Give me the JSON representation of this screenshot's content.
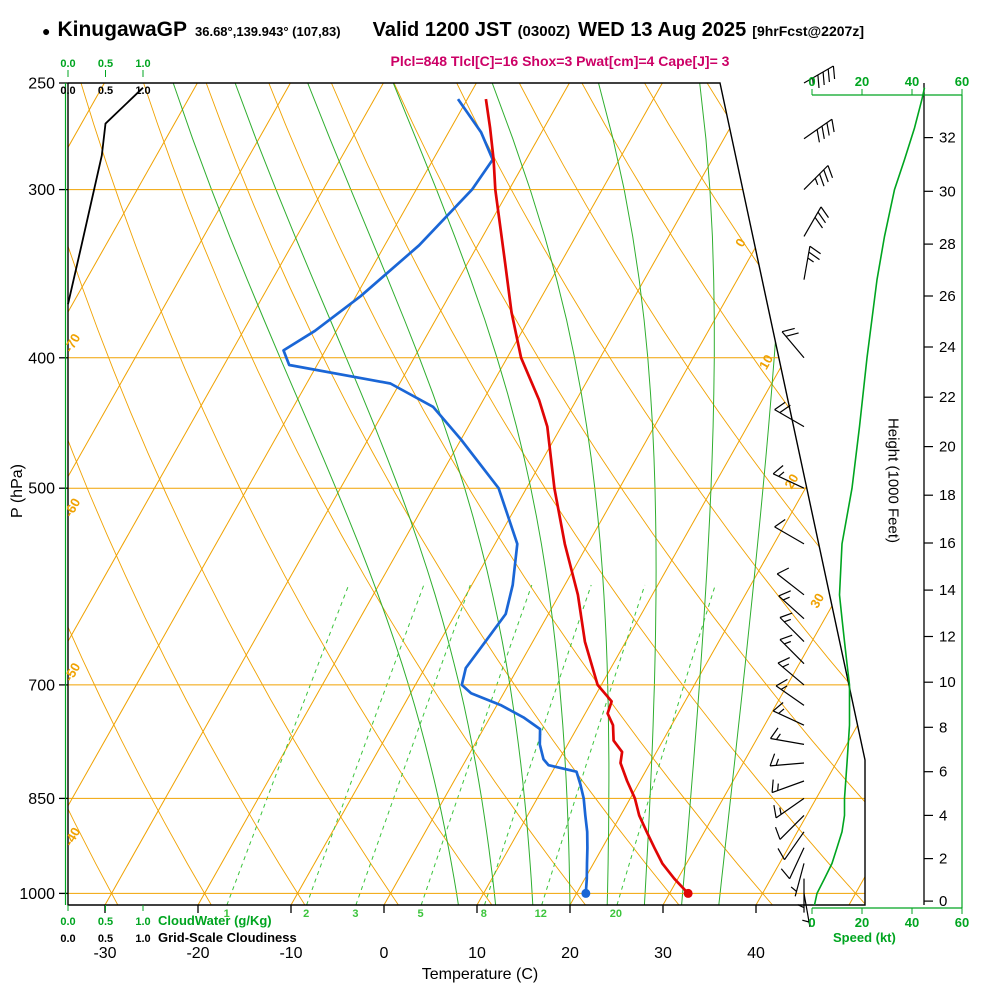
{
  "header": {
    "bullet": "●",
    "station": "KinugawaGP",
    "coords": "36.68°,139.943° (107,83)",
    "valid_label": "Valid 1200 JST",
    "valid_zulu": "(0300Z)",
    "valid_date": "WED 13 Aug 2025",
    "forecast_tag": "[9hrFcst@2207z]",
    "params": "Plcl=848 Tlcl[C]=16 Shox=3 Pwat[cm]=4 Cape[J]= 3"
  },
  "labels": {
    "pressure_axis": "P (hPa)",
    "temperature_axis": "Temperature (C)",
    "height_axis": "Height (1000 Feet)",
    "speed_axis": "Speed (kt)",
    "cloudwater": "CloudWater (g/Kg)",
    "cloudiness": "Grid-Scale Cloudiness"
  },
  "chart_data": {
    "type": "skewt_log_p_sounding",
    "pressure_axis": {
      "label": "P (hPa)",
      "range_hPa": [
        250,
        1020
      ],
      "tick_levels": [
        250,
        300,
        400,
        500,
        700,
        850,
        1000
      ]
    },
    "temperature_axis": {
      "label": "Temperature (C)",
      "ticks_C": [
        -30,
        -20,
        -10,
        0,
        10,
        20,
        30,
        40
      ]
    },
    "height_axis": {
      "label": "Height (1000 Feet)",
      "ticks_kft": [
        0,
        2,
        4,
        6,
        8,
        10,
        12,
        14,
        16,
        18,
        20,
        22,
        24,
        26,
        28,
        30,
        32
      ]
    },
    "speed_axis": {
      "label": "Speed (kt)",
      "ticks_kt": [
        0,
        20,
        40,
        60
      ],
      "range_kt": [
        0,
        60
      ]
    },
    "cloud_axes": {
      "cloudwater_label": "CloudWater (g/Kg)",
      "cloudiness_label": "Grid-Scale Cloudiness",
      "ticks": [
        "0.0",
        "0.5",
        "1.0"
      ]
    },
    "background": {
      "isotherm_step_C": 10,
      "isotherm_range_C": [
        -100,
        50
      ],
      "isotherm_edge_labels_left_C": [
        -70,
        -60,
        -50,
        -40
      ],
      "isotherm_edge_labels_right_C": [
        0,
        10,
        20,
        30
      ],
      "dry_adiabat_range_C": [
        -40,
        120
      ],
      "dry_adiabat_step_C": 10,
      "moist_adiabat_surface_temps_C": [
        8,
        12,
        16,
        20,
        24,
        28,
        32,
        36
      ],
      "mixing_ratio_lines_g_kg": [
        1,
        2,
        3,
        5,
        8,
        12,
        20
      ]
    },
    "temperature_profile_p_T": [
      [
        1000,
        32
      ],
      [
        975,
        29.6
      ],
      [
        950,
        27.4
      ],
      [
        925,
        25.6
      ],
      [
        900,
        23.8
      ],
      [
        875,
        22
      ],
      [
        850,
        20.5
      ],
      [
        825,
        18.6
      ],
      [
        800,
        16.8
      ],
      [
        785,
        16.3
      ],
      [
        770,
        14.7
      ],
      [
        750,
        13.7
      ],
      [
        735,
        12.4
      ],
      [
        720,
        12.1
      ],
      [
        700,
        9.6
      ],
      [
        650,
        5.6
      ],
      [
        600,
        2
      ],
      [
        550,
        -2.5
      ],
      [
        500,
        -7
      ],
      [
        450,
        -11.5
      ],
      [
        430,
        -14
      ],
      [
        400,
        -18.5
      ],
      [
        370,
        -22.3
      ],
      [
        340,
        -26
      ],
      [
        300,
        -31.5
      ],
      [
        285,
        -33.5
      ],
      [
        270,
        -35.8
      ],
      [
        257,
        -38
      ]
    ],
    "dewpoint_profile_p_Td": [
      [
        1000,
        21
      ],
      [
        975,
        20.2
      ],
      [
        950,
        19.3
      ],
      [
        925,
        18.4
      ],
      [
        900,
        17.4
      ],
      [
        875,
        16.2
      ],
      [
        850,
        15
      ],
      [
        830,
        13.8
      ],
      [
        812,
        12.6
      ],
      [
        803,
        9.2
      ],
      [
        795,
        8.3
      ],
      [
        775,
        7
      ],
      [
        755,
        6.1
      ],
      [
        740,
        3.6
      ],
      [
        725,
        0.5
      ],
      [
        710,
        -3.5
      ],
      [
        700,
        -5
      ],
      [
        680,
        -5.6
      ],
      [
        650,
        -5.1
      ],
      [
        620,
        -4.6
      ],
      [
        590,
        -5.6
      ],
      [
        550,
        -7.6
      ],
      [
        500,
        -13
      ],
      [
        460,
        -20
      ],
      [
        435,
        -25
      ],
      [
        418,
        -31
      ],
      [
        405,
        -43
      ],
      [
        395,
        -44.5
      ],
      [
        382,
        -42.3
      ],
      [
        360,
        -39.5
      ],
      [
        330,
        -36.3
      ],
      [
        300,
        -34
      ],
      [
        285,
        -33.6
      ],
      [
        272,
        -36.5
      ],
      [
        257,
        -41
      ]
    ],
    "wind_speed_profile_p_kt": [
      [
        1020,
        1
      ],
      [
        1000,
        2
      ],
      [
        975,
        5
      ],
      [
        950,
        8
      ],
      [
        925,
        10
      ],
      [
        900,
        12
      ],
      [
        875,
        13
      ],
      [
        850,
        13
      ],
      [
        800,
        14
      ],
      [
        750,
        15
      ],
      [
        700,
        15
      ],
      [
        675,
        14
      ],
      [
        650,
        13
      ],
      [
        625,
        12
      ],
      [
        600,
        11
      ],
      [
        550,
        12
      ],
      [
        500,
        16
      ],
      [
        450,
        19
      ],
      [
        400,
        22
      ],
      [
        350,
        26
      ],
      [
        325,
        29
      ],
      [
        300,
        33
      ],
      [
        285,
        37
      ],
      [
        270,
        41
      ],
      [
        257,
        44
      ],
      [
        252,
        45
      ]
    ],
    "wind_barbs": [
      {
        "p": 1000,
        "dir": 170,
        "kt": 3
      },
      {
        "p": 975,
        "dir": 180,
        "kt": 5
      },
      {
        "p": 950,
        "dir": 195,
        "kt": 7
      },
      {
        "p": 925,
        "dir": 205,
        "kt": 9
      },
      {
        "p": 900,
        "dir": 215,
        "kt": 11
      },
      {
        "p": 875,
        "dir": 225,
        "kt": 12
      },
      {
        "p": 850,
        "dir": 235,
        "kt": 13
      },
      {
        "p": 825,
        "dir": 250,
        "kt": 13
      },
      {
        "p": 800,
        "dir": 265,
        "kt": 14
      },
      {
        "p": 775,
        "dir": 280,
        "kt": 15
      },
      {
        "p": 750,
        "dir": 295,
        "kt": 15
      },
      {
        "p": 725,
        "dir": 305,
        "kt": 16
      },
      {
        "p": 700,
        "dir": 310,
        "kt": 16
      },
      {
        "p": 675,
        "dir": 315,
        "kt": 15
      },
      {
        "p": 650,
        "dir": 315,
        "kt": 14
      },
      {
        "p": 625,
        "dir": 312,
        "kt": 13
      },
      {
        "p": 600,
        "dir": 308,
        "kt": 12
      },
      {
        "p": 550,
        "dir": 300,
        "kt": 12
      },
      {
        "p": 500,
        "dir": 295,
        "kt": 16
      },
      {
        "p": 450,
        "dir": 300,
        "kt": 19
      },
      {
        "p": 400,
        "dir": 320,
        "kt": 22
      },
      {
        "p": 350,
        "dir": 10,
        "kt": 26
      },
      {
        "p": 325,
        "dir": 30,
        "kt": 29
      },
      {
        "p": 300,
        "dir": 45,
        "kt": 33
      },
      {
        "p": 275,
        "dir": 55,
        "kt": 40
      },
      {
        "p": 250,
        "dir": 60,
        "kt": 45
      }
    ],
    "cloudiness_profile_p_frac": [
      [
        365,
        0
      ],
      [
        330,
        0.18
      ],
      [
        283,
        0.45
      ],
      [
        268,
        0.5
      ],
      [
        252,
        1.0
      ]
    ],
    "surface": {
      "pressure_hPa": 1000,
      "temperature_C": 32,
      "dewpoint_C": 21
    },
    "colors": {
      "grid": "#f0a202",
      "moist_adiabat": "#2fae2f",
      "mixing_ratio": "#3cc43c",
      "temperature": "#e00505",
      "dewpoint": "#1a66d6",
      "wind_speed": "#00a520",
      "cloud_scale": "#00a520",
      "params_text": "#cc0066",
      "barbs": "#000000"
    }
  }
}
